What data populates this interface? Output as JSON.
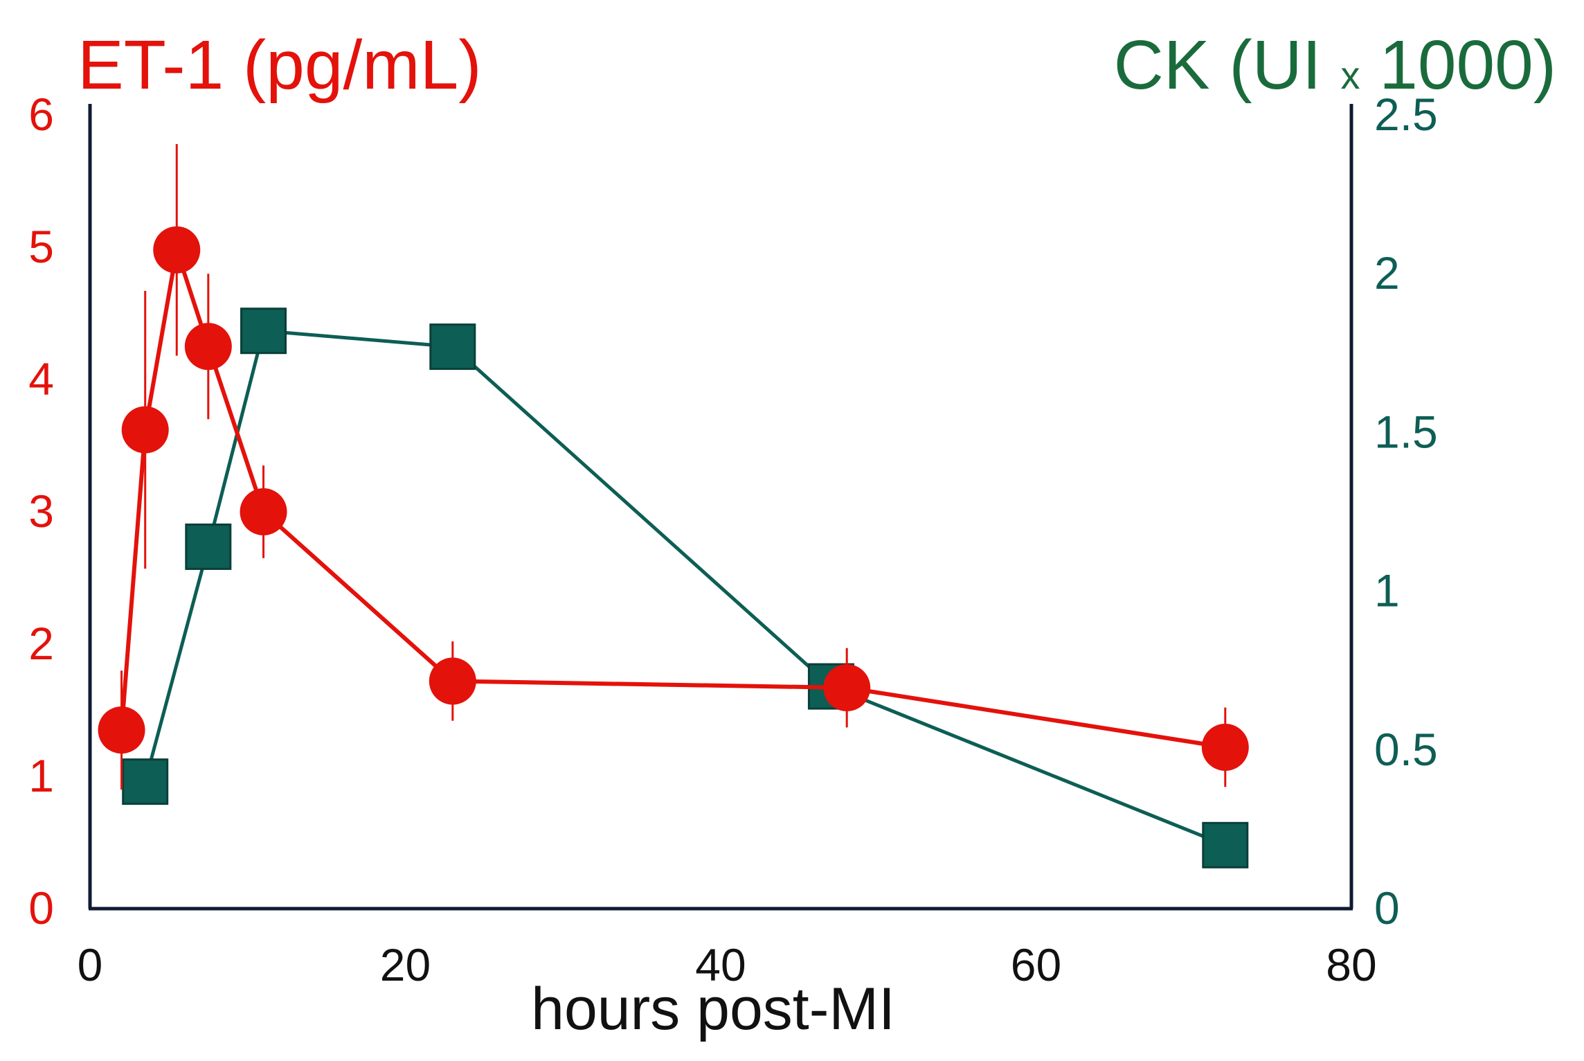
{
  "colors": {
    "et1": "#e3120b",
    "ck": "#0d5e55",
    "ck_title": "#1a6b3c",
    "axis": "#101a33",
    "text": "#111111"
  },
  "chart_data": {
    "type": "line",
    "title_left": {
      "main": "ET-1 (pg/mL)"
    },
    "title_right": {
      "part1": "CK (UI ",
      "part2": "x",
      "part3": " 1000)"
    },
    "xlabel": "hours post-MI",
    "xlim": [
      0,
      80
    ],
    "ylim_left": [
      0,
      6
    ],
    "ylim_right": [
      0,
      2.5
    ],
    "x_ticks": [
      "0",
      "20",
      "40",
      "60",
      "80"
    ],
    "y_left_ticks": [
      "0",
      "1",
      "2",
      "3",
      "4",
      "5",
      "6"
    ],
    "y_right_ticks": [
      "0",
      "0.5",
      "1",
      "1.5",
      "2",
      "2.5"
    ],
    "series": [
      {
        "name": "ET-1",
        "axis": "left",
        "marker": "circle",
        "x": [
          2,
          3.5,
          5.5,
          7.5,
          11,
          23,
          48,
          72
        ],
        "y": [
          1.35,
          3.62,
          4.98,
          4.25,
          3.0,
          1.72,
          1.67,
          1.22
        ],
        "err": [
          0.45,
          1.05,
          0.8,
          0.55,
          0.35,
          0.3,
          0.3,
          0.3
        ]
      },
      {
        "name": "CK",
        "axis": "right",
        "marker": "square",
        "x": [
          3.5,
          7.5,
          11,
          23,
          47,
          72
        ],
        "y": [
          0.4,
          1.14,
          1.82,
          1.77,
          0.7,
          0.2
        ]
      }
    ]
  }
}
